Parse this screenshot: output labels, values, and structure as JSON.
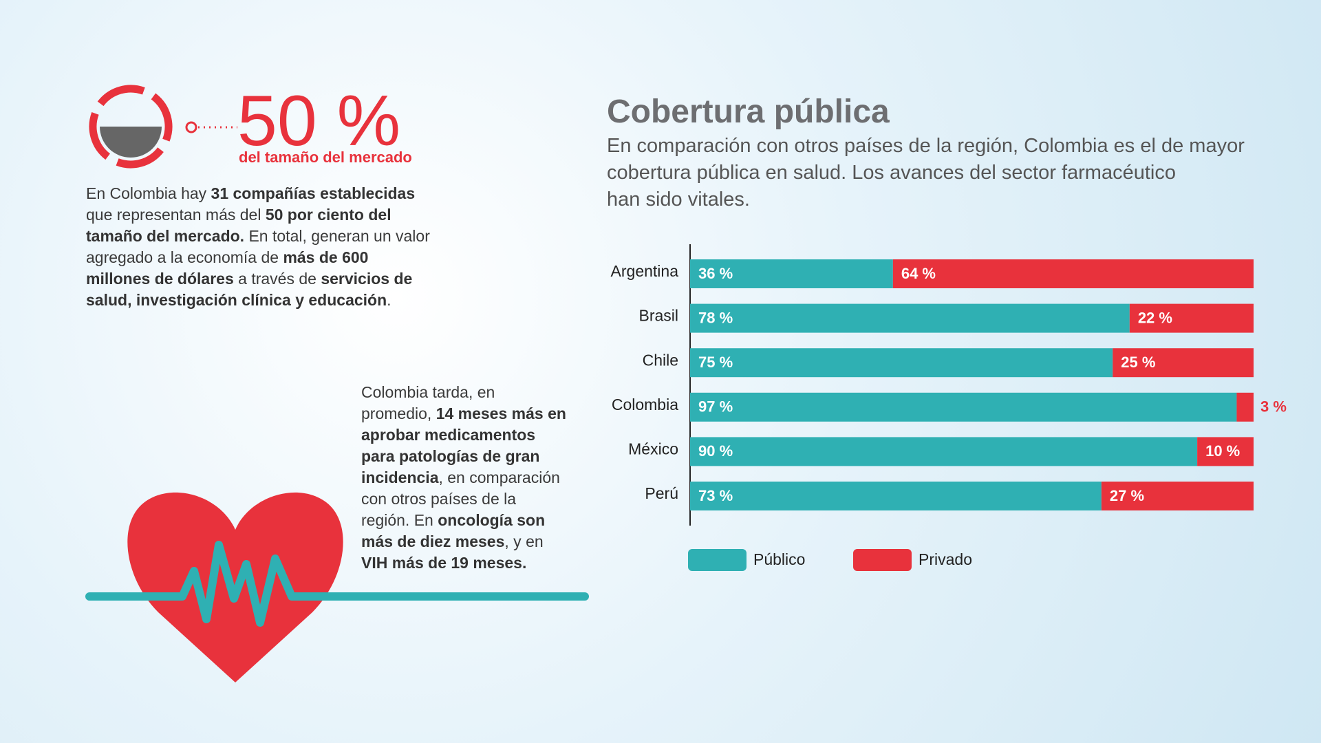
{
  "stat": {
    "value_label": "50 %",
    "caption": "del tamaño del mercado"
  },
  "intro": [
    {
      "text": "En Colombia hay ",
      "bold": false
    },
    {
      "text": "31 compañías establecidas",
      "bold": true
    },
    {
      "text": " que representan más del ",
      "bold": false
    },
    {
      "text": "50 por ciento del tamaño del mercado.",
      "bold": true
    },
    {
      "text": " En total, generan un valor agregado a la economía de ",
      "bold": false
    },
    {
      "text": "más de 600 millones de dólares",
      "bold": true
    },
    {
      "text": " a través de ",
      "bold": false
    },
    {
      "text": "servicios de salud, investigación clínica y educación",
      "bold": true
    },
    {
      "text": ".",
      "bold": false
    }
  ],
  "note": [
    {
      "text": "Colombia tarda, en promedio, ",
      "bold": false
    },
    {
      "text": "14 meses más en aprobar medicamentos para patologías de gran incidencia",
      "bold": true
    },
    {
      "text": ", en comparación con otros países de la región. En ",
      "bold": false
    },
    {
      "text": "oncología son más de diez meses",
      "bold": true
    },
    {
      "text": ", y en ",
      "bold": false
    },
    {
      "text": "VIH más de 19 meses.",
      "bold": true
    }
  ],
  "chart_data": {
    "type": "stacked-bar-horizontal",
    "title": "Cobertura pública",
    "subtitle": [
      "En comparación con otros países de la región, Colombia es el de mayor",
      "cobertura pública en salud. Los avances del sector farmacéutico",
      "han sido vitales."
    ],
    "categories": [
      "Argentina",
      "Brasil",
      "Chile",
      "Colombia",
      "México",
      "Perú"
    ],
    "series": [
      {
        "name": "Público",
        "color": "#2fb0b3",
        "values": [
          36,
          78,
          75,
          97,
          90,
          73
        ],
        "value_labels": [
          "36 %",
          "78 %",
          "75 %",
          "97 %",
          "90 %",
          "73 %"
        ]
      },
      {
        "name": "Privado",
        "color": "#e8323c",
        "values": [
          64,
          22,
          25,
          3,
          10,
          27
        ],
        "value_labels": [
          "64 %",
          "22 %",
          "25 %",
          "3 %",
          "10 %",
          "27 %"
        ]
      }
    ],
    "xlim": [
      0,
      100
    ],
    "legend": "bottom"
  }
}
